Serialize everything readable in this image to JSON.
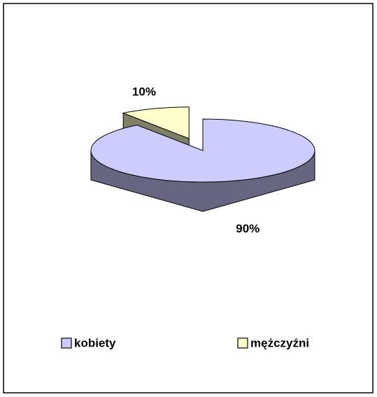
{
  "chart_data": {
    "type": "pie3d",
    "categories": [
      "kobiety",
      "mężczyźni"
    ],
    "values": [
      90,
      10
    ],
    "value_labels": [
      "90%",
      "10%"
    ],
    "colors": [
      "#ccccff",
      "#ffffcc"
    ],
    "legend": "bottom"
  }
}
